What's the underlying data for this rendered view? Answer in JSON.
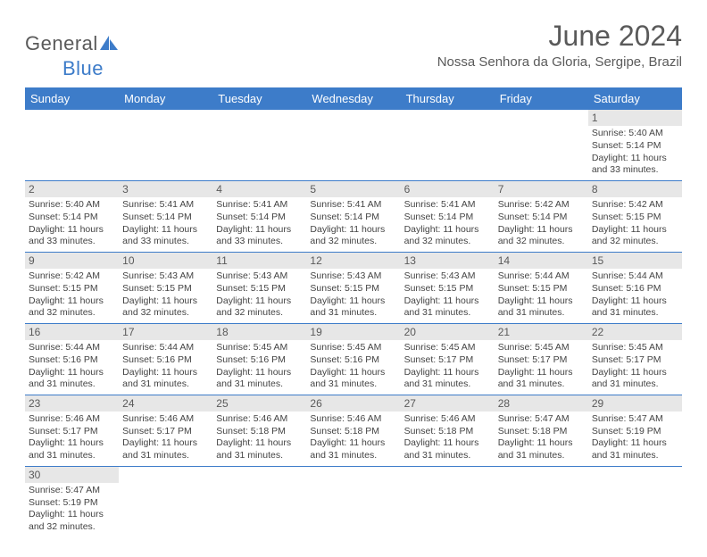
{
  "logo": {
    "text1": "General",
    "text2": "Blue"
  },
  "title": "June 2024",
  "location": "Nossa Senhora da Gloria, Sergipe, Brazil",
  "colors": {
    "header_bg": "#3d7cc9",
    "header_text": "#ffffff",
    "daynum_bg": "#e7e7e7",
    "text_gray": "#5a5a5a",
    "body_text": "#444444",
    "border": "#3d7cc9",
    "page_bg": "#ffffff"
  },
  "daysOfWeek": [
    "Sunday",
    "Monday",
    "Tuesday",
    "Wednesday",
    "Thursday",
    "Friday",
    "Saturday"
  ],
  "weeks": [
    [
      {
        "n": "",
        "sr": "",
        "ss": "",
        "dl": ""
      },
      {
        "n": "",
        "sr": "",
        "ss": "",
        "dl": ""
      },
      {
        "n": "",
        "sr": "",
        "ss": "",
        "dl": ""
      },
      {
        "n": "",
        "sr": "",
        "ss": "",
        "dl": ""
      },
      {
        "n": "",
        "sr": "",
        "ss": "",
        "dl": ""
      },
      {
        "n": "",
        "sr": "",
        "ss": "",
        "dl": ""
      },
      {
        "n": "1",
        "sr": "Sunrise: 5:40 AM",
        "ss": "Sunset: 5:14 PM",
        "dl": "Daylight: 11 hours and 33 minutes."
      }
    ],
    [
      {
        "n": "2",
        "sr": "Sunrise: 5:40 AM",
        "ss": "Sunset: 5:14 PM",
        "dl": "Daylight: 11 hours and 33 minutes."
      },
      {
        "n": "3",
        "sr": "Sunrise: 5:41 AM",
        "ss": "Sunset: 5:14 PM",
        "dl": "Daylight: 11 hours and 33 minutes."
      },
      {
        "n": "4",
        "sr": "Sunrise: 5:41 AM",
        "ss": "Sunset: 5:14 PM",
        "dl": "Daylight: 11 hours and 33 minutes."
      },
      {
        "n": "5",
        "sr": "Sunrise: 5:41 AM",
        "ss": "Sunset: 5:14 PM",
        "dl": "Daylight: 11 hours and 32 minutes."
      },
      {
        "n": "6",
        "sr": "Sunrise: 5:41 AM",
        "ss": "Sunset: 5:14 PM",
        "dl": "Daylight: 11 hours and 32 minutes."
      },
      {
        "n": "7",
        "sr": "Sunrise: 5:42 AM",
        "ss": "Sunset: 5:14 PM",
        "dl": "Daylight: 11 hours and 32 minutes."
      },
      {
        "n": "8",
        "sr": "Sunrise: 5:42 AM",
        "ss": "Sunset: 5:15 PM",
        "dl": "Daylight: 11 hours and 32 minutes."
      }
    ],
    [
      {
        "n": "9",
        "sr": "Sunrise: 5:42 AM",
        "ss": "Sunset: 5:15 PM",
        "dl": "Daylight: 11 hours and 32 minutes."
      },
      {
        "n": "10",
        "sr": "Sunrise: 5:43 AM",
        "ss": "Sunset: 5:15 PM",
        "dl": "Daylight: 11 hours and 32 minutes."
      },
      {
        "n": "11",
        "sr": "Sunrise: 5:43 AM",
        "ss": "Sunset: 5:15 PM",
        "dl": "Daylight: 11 hours and 32 minutes."
      },
      {
        "n": "12",
        "sr": "Sunrise: 5:43 AM",
        "ss": "Sunset: 5:15 PM",
        "dl": "Daylight: 11 hours and 31 minutes."
      },
      {
        "n": "13",
        "sr": "Sunrise: 5:43 AM",
        "ss": "Sunset: 5:15 PM",
        "dl": "Daylight: 11 hours and 31 minutes."
      },
      {
        "n": "14",
        "sr": "Sunrise: 5:44 AM",
        "ss": "Sunset: 5:15 PM",
        "dl": "Daylight: 11 hours and 31 minutes."
      },
      {
        "n": "15",
        "sr": "Sunrise: 5:44 AM",
        "ss": "Sunset: 5:16 PM",
        "dl": "Daylight: 11 hours and 31 minutes."
      }
    ],
    [
      {
        "n": "16",
        "sr": "Sunrise: 5:44 AM",
        "ss": "Sunset: 5:16 PM",
        "dl": "Daylight: 11 hours and 31 minutes."
      },
      {
        "n": "17",
        "sr": "Sunrise: 5:44 AM",
        "ss": "Sunset: 5:16 PM",
        "dl": "Daylight: 11 hours and 31 minutes."
      },
      {
        "n": "18",
        "sr": "Sunrise: 5:45 AM",
        "ss": "Sunset: 5:16 PM",
        "dl": "Daylight: 11 hours and 31 minutes."
      },
      {
        "n": "19",
        "sr": "Sunrise: 5:45 AM",
        "ss": "Sunset: 5:16 PM",
        "dl": "Daylight: 11 hours and 31 minutes."
      },
      {
        "n": "20",
        "sr": "Sunrise: 5:45 AM",
        "ss": "Sunset: 5:17 PM",
        "dl": "Daylight: 11 hours and 31 minutes."
      },
      {
        "n": "21",
        "sr": "Sunrise: 5:45 AM",
        "ss": "Sunset: 5:17 PM",
        "dl": "Daylight: 11 hours and 31 minutes."
      },
      {
        "n": "22",
        "sr": "Sunrise: 5:45 AM",
        "ss": "Sunset: 5:17 PM",
        "dl": "Daylight: 11 hours and 31 minutes."
      }
    ],
    [
      {
        "n": "23",
        "sr": "Sunrise: 5:46 AM",
        "ss": "Sunset: 5:17 PM",
        "dl": "Daylight: 11 hours and 31 minutes."
      },
      {
        "n": "24",
        "sr": "Sunrise: 5:46 AM",
        "ss": "Sunset: 5:17 PM",
        "dl": "Daylight: 11 hours and 31 minutes."
      },
      {
        "n": "25",
        "sr": "Sunrise: 5:46 AM",
        "ss": "Sunset: 5:18 PM",
        "dl": "Daylight: 11 hours and 31 minutes."
      },
      {
        "n": "26",
        "sr": "Sunrise: 5:46 AM",
        "ss": "Sunset: 5:18 PM",
        "dl": "Daylight: 11 hours and 31 minutes."
      },
      {
        "n": "27",
        "sr": "Sunrise: 5:46 AM",
        "ss": "Sunset: 5:18 PM",
        "dl": "Daylight: 11 hours and 31 minutes."
      },
      {
        "n": "28",
        "sr": "Sunrise: 5:47 AM",
        "ss": "Sunset: 5:18 PM",
        "dl": "Daylight: 11 hours and 31 minutes."
      },
      {
        "n": "29",
        "sr": "Sunrise: 5:47 AM",
        "ss": "Sunset: 5:19 PM",
        "dl": "Daylight: 11 hours and 31 minutes."
      }
    ],
    [
      {
        "n": "30",
        "sr": "Sunrise: 5:47 AM",
        "ss": "Sunset: 5:19 PM",
        "dl": "Daylight: 11 hours and 32 minutes."
      },
      {
        "n": "",
        "sr": "",
        "ss": "",
        "dl": ""
      },
      {
        "n": "",
        "sr": "",
        "ss": "",
        "dl": ""
      },
      {
        "n": "",
        "sr": "",
        "ss": "",
        "dl": ""
      },
      {
        "n": "",
        "sr": "",
        "ss": "",
        "dl": ""
      },
      {
        "n": "",
        "sr": "",
        "ss": "",
        "dl": ""
      },
      {
        "n": "",
        "sr": "",
        "ss": "",
        "dl": ""
      }
    ]
  ]
}
